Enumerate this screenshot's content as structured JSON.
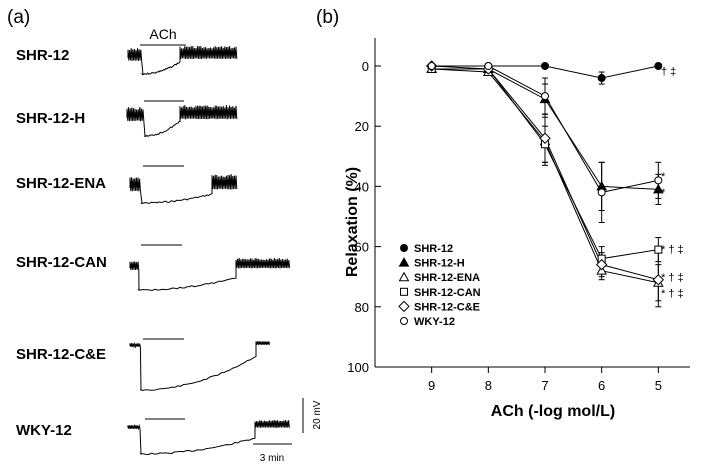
{
  "panels": {
    "a": "(a)",
    "b": "(b)"
  },
  "traces": {
    "stimulus_label": "ACh",
    "scale_vertical": "20 mV",
    "scale_horizontal": "3 min",
    "rows": [
      {
        "label": "SHR-12"
      },
      {
        "label": "SHR-12-H"
      },
      {
        "label": "SHR-12-ENA"
      },
      {
        "label": "SHR-12-CAN"
      },
      {
        "label": "SHR-12-C&E"
      },
      {
        "label": "WKY-12"
      }
    ]
  },
  "chart_data": {
    "type": "line",
    "xlabel": "ACh (-log mol/L)",
    "ylabel": "Relaxation (%)",
    "x": [
      9,
      8,
      7,
      6,
      5
    ],
    "xlim": [
      10,
      4
    ],
    "ylim": [
      0,
      100
    ],
    "yticks": [
      0,
      20,
      40,
      60,
      80,
      100
    ],
    "y_inverted": true,
    "legend_position": "bottom-left",
    "series": [
      {
        "name": "SHR-12",
        "marker": "circle-filled",
        "values": [
          0,
          0,
          0,
          4,
          0
        ],
        "err": [
          0,
          0,
          0,
          2,
          0
        ],
        "annotation": "† ‡"
      },
      {
        "name": "SHR-12-H",
        "marker": "triangle-filled",
        "values": [
          1,
          1,
          11,
          40,
          41
        ],
        "err": [
          0,
          0,
          5,
          8,
          5
        ],
        "annotation": "*"
      },
      {
        "name": "SHR-12-ENA",
        "marker": "triangle-open",
        "values": [
          1,
          2,
          25,
          68,
          72
        ],
        "err": [
          0,
          0,
          8,
          3,
          6
        ],
        "annotation": "* † ‡"
      },
      {
        "name": "SHR-12-CAN",
        "marker": "square-open",
        "values": [
          1,
          1,
          26,
          64,
          61
        ],
        "err": [
          0,
          0,
          6,
          4,
          4
        ],
        "annotation": "* † ‡"
      },
      {
        "name": "SHR-12-C&E",
        "marker": "diamond-open",
        "values": [
          0,
          1,
          24,
          66,
          71
        ],
        "err": [
          0,
          0,
          8,
          4,
          9
        ],
        "annotation": "* † ‡"
      },
      {
        "name": "WKY-12",
        "marker": "circle-open",
        "values": [
          0,
          0,
          10,
          42,
          38
        ],
        "err": [
          0,
          0,
          6,
          10,
          6
        ],
        "annotation": "*"
      }
    ]
  }
}
